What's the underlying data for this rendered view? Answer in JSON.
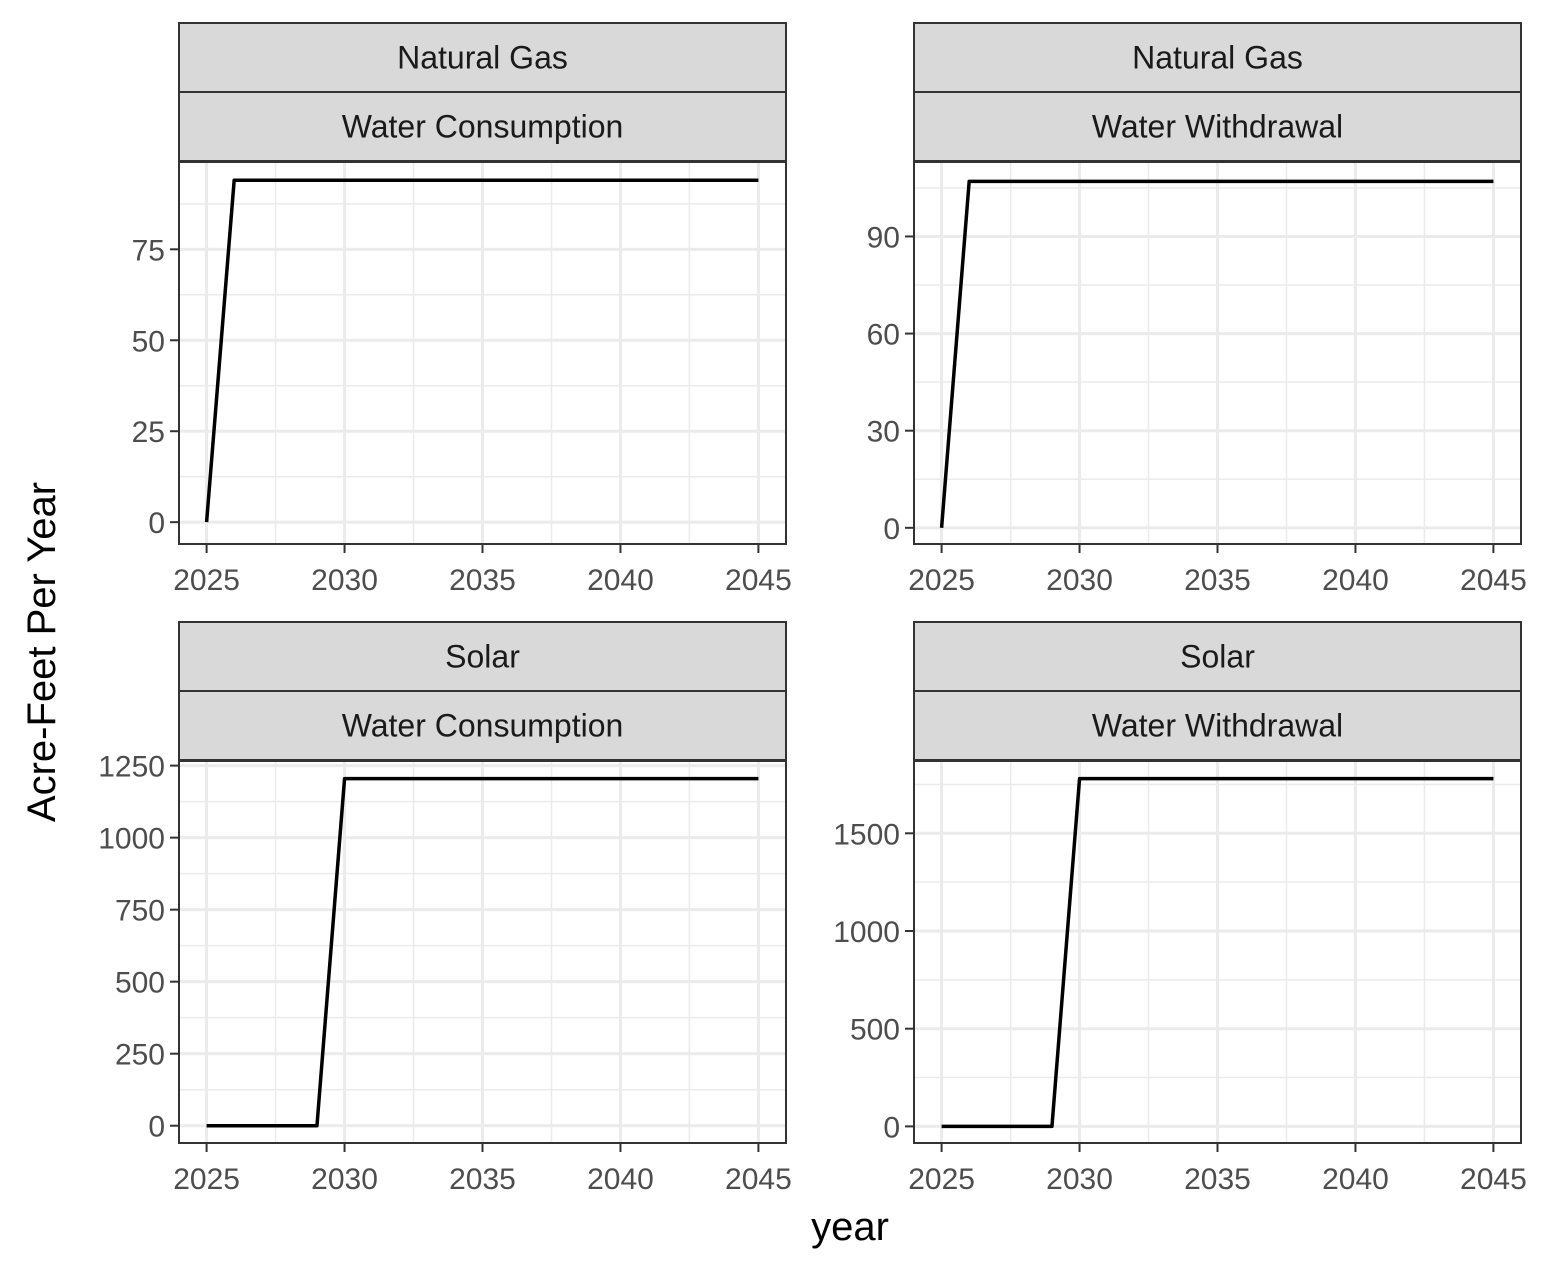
{
  "chart_data": {
    "type": "line",
    "layout": "facet_grid 2x2",
    "ylabel": "Acre-Feet Per Year",
    "xlabel": "year",
    "x_ticks": [
      2025,
      2030,
      2035,
      2040,
      2045
    ],
    "grid": true,
    "line_color": "#000000",
    "panels": [
      {
        "strip_top": "Natural Gas",
        "strip_bottom": "Water Consumption",
        "xlim": [
          2024,
          2046
        ],
        "ylim": [
          -6,
          99
        ],
        "y_ticks": [
          0,
          25,
          50,
          75
        ],
        "x": [
          2025,
          2026,
          2027,
          2028,
          2029,
          2030,
          2031,
          2032,
          2033,
          2034,
          2035,
          2036,
          2037,
          2038,
          2039,
          2040,
          2041,
          2042,
          2043,
          2044,
          2045
        ],
        "y": [
          0,
          94,
          94,
          94,
          94,
          94,
          94,
          94,
          94,
          94,
          94,
          94,
          94,
          94,
          94,
          94,
          94,
          94,
          94,
          94,
          94
        ]
      },
      {
        "strip_top": "Natural Gas",
        "strip_bottom": "Water Withdrawal",
        "xlim": [
          2024,
          2046
        ],
        "ylim": [
          -5,
          113
        ],
        "y_ticks": [
          0,
          30,
          60,
          90
        ],
        "x": [
          2025,
          2026,
          2027,
          2028,
          2029,
          2030,
          2031,
          2032,
          2033,
          2034,
          2035,
          2036,
          2037,
          2038,
          2039,
          2040,
          2041,
          2042,
          2043,
          2044,
          2045
        ],
        "y": [
          0,
          107,
          107,
          107,
          107,
          107,
          107,
          107,
          107,
          107,
          107,
          107,
          107,
          107,
          107,
          107,
          107,
          107,
          107,
          107,
          107
        ]
      },
      {
        "strip_top": "Solar",
        "strip_bottom": "Water Consumption",
        "xlim": [
          2024,
          2046
        ],
        "ylim": [
          -60,
          1266
        ],
        "y_ticks": [
          0,
          250,
          500,
          750,
          1000,
          1250
        ],
        "x": [
          2025,
          2026,
          2027,
          2028,
          2029,
          2030,
          2031,
          2032,
          2033,
          2034,
          2035,
          2036,
          2037,
          2038,
          2039,
          2040,
          2041,
          2042,
          2043,
          2044,
          2045
        ],
        "y": [
          0,
          0,
          0,
          0,
          0,
          1205,
          1205,
          1205,
          1205,
          1205,
          1205,
          1205,
          1205,
          1205,
          1205,
          1205,
          1205,
          1205,
          1205,
          1205,
          1205
        ]
      },
      {
        "strip_top": "Solar",
        "strip_bottom": "Water Withdrawal",
        "xlim": [
          2024,
          2046
        ],
        "ylim": [
          -85,
          1870
        ],
        "y_ticks": [
          0,
          500,
          1000,
          1500
        ],
        "x": [
          2025,
          2026,
          2027,
          2028,
          2029,
          2030,
          2031,
          2032,
          2033,
          2034,
          2035,
          2036,
          2037,
          2038,
          2039,
          2040,
          2041,
          2042,
          2043,
          2044,
          2045
        ],
        "y": [
          0,
          0,
          0,
          0,
          0,
          1780,
          1780,
          1780,
          1780,
          1780,
          1780,
          1780,
          1780,
          1780,
          1780,
          1780,
          1780,
          1780,
          1780,
          1780,
          1780
        ]
      }
    ]
  }
}
